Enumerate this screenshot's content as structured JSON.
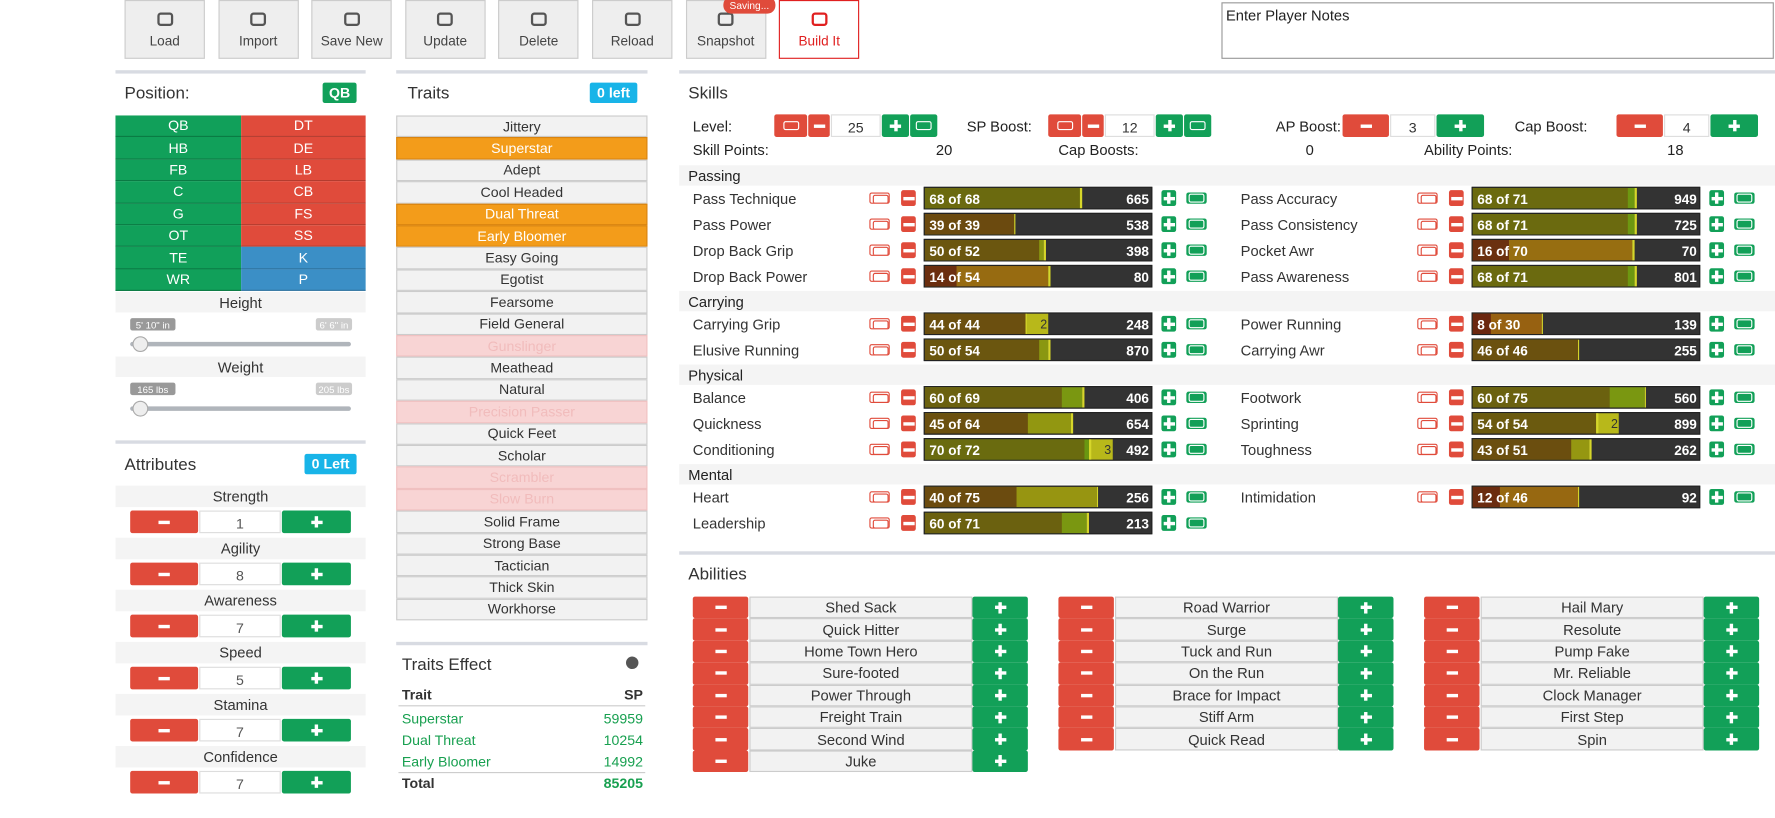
{
  "toolbar": {
    "buttons": [
      "Load",
      "Import",
      "Save New",
      "Update",
      "Delete",
      "Reload",
      "Snapshot",
      "Build It"
    ],
    "saving_badge": "Saving..."
  },
  "notes_placeholder": "Enter Player Notes",
  "position": {
    "title": "Position:",
    "badge": "QB",
    "groups": [
      {
        "color": "#11a05a",
        "labels": [
          "QB",
          "HB",
          "FB",
          "C",
          "G",
          "OT",
          "TE",
          "WR"
        ]
      },
      {
        "color": "#e04b3b",
        "labels": [
          "DT",
          "DE",
          "LB",
          "CB",
          "FS",
          "SS"
        ]
      },
      {
        "color": "#3b8fc6",
        "labels": [
          "K",
          "P"
        ]
      }
    ],
    "height": {
      "label": "Height",
      "min": "5' 10\" in",
      "max": "6' 6\" in"
    },
    "weight": {
      "label": "Weight",
      "min": "165 lbs",
      "max": "205 lbs"
    }
  },
  "attributes": {
    "title": "Attributes",
    "badge": "0 Left",
    "items": [
      {
        "name": "Strength",
        "value": 1
      },
      {
        "name": "Agility",
        "value": 8
      },
      {
        "name": "Awareness",
        "value": 7
      },
      {
        "name": "Speed",
        "value": 5
      },
      {
        "name": "Stamina",
        "value": 7
      },
      {
        "name": "Confidence",
        "value": 7
      }
    ]
  },
  "traits": {
    "title": "Traits",
    "badge": "0 left",
    "items": [
      {
        "name": "Jittery",
        "state": "normal"
      },
      {
        "name": "Superstar",
        "state": "selected"
      },
      {
        "name": "Adept",
        "state": "normal"
      },
      {
        "name": "Cool Headed",
        "state": "normal"
      },
      {
        "name": "Dual Threat",
        "state": "selected"
      },
      {
        "name": "Early Bloomer",
        "state": "selected"
      },
      {
        "name": "Easy Going",
        "state": "normal"
      },
      {
        "name": "Egotist",
        "state": "normal"
      },
      {
        "name": "Fearsome",
        "state": "normal"
      },
      {
        "name": "Field General",
        "state": "normal"
      },
      {
        "name": "Gunslinger",
        "state": "disabled"
      },
      {
        "name": "Meathead",
        "state": "normal"
      },
      {
        "name": "Natural",
        "state": "normal"
      },
      {
        "name": "Precision Passer",
        "state": "disabled"
      },
      {
        "name": "Quick Feet",
        "state": "normal"
      },
      {
        "name": "Scholar",
        "state": "normal"
      },
      {
        "name": "Scrambler",
        "state": "disabled"
      },
      {
        "name": "Slow Burn",
        "state": "disabled"
      },
      {
        "name": "Solid Frame",
        "state": "normal"
      },
      {
        "name": "Strong Base",
        "state": "normal"
      },
      {
        "name": "Tactician",
        "state": "normal"
      },
      {
        "name": "Thick Skin",
        "state": "normal"
      },
      {
        "name": "Workhorse",
        "state": "normal"
      }
    ]
  },
  "traits_effect": {
    "title": "Traits Effect",
    "header": [
      "Trait",
      "SP"
    ],
    "rows": [
      [
        "Superstar",
        59959
      ],
      [
        "Dual Threat",
        10254
      ],
      [
        "Early Bloomer",
        14992
      ]
    ],
    "total": [
      "Total",
      85205
    ]
  },
  "skills": {
    "title": "Skills",
    "boosts": [
      {
        "label": "Level:",
        "value": 25
      },
      {
        "label": "SP Boost:",
        "value": 12
      },
      {
        "label": "AP Boost:",
        "value": 3
      },
      {
        "label": "Cap Boost:",
        "value": 4
      }
    ],
    "points": [
      {
        "label": "Skill Points:",
        "value": 20
      },
      {
        "label": "Cap Boosts:",
        "value": 0
      },
      {
        "label": "Ability Points:",
        "value": 18
      }
    ],
    "groups": [
      {
        "name": "Passing",
        "left": [
          {
            "name": "Pass Technique",
            "value": 68,
            "cap": 68,
            "label": "68 of 68",
            "cost": 665
          },
          {
            "name": "Pass Power",
            "value": 39,
            "cap": 39,
            "label": "39 of 39",
            "cost": 538
          },
          {
            "name": "Drop Back Grip",
            "value": 50,
            "cap": 52,
            "label": "50 of 52",
            "cost": 398
          },
          {
            "name": "Drop Back Power",
            "value": 14,
            "cap": 54,
            "label": "14 of 54",
            "cost": 80
          }
        ],
        "right": [
          {
            "name": "Pass Accuracy",
            "value": 68,
            "cap": 71,
            "label": "68 of 71",
            "cost": 949
          },
          {
            "name": "Pass Consistency",
            "value": 68,
            "cap": 71,
            "label": "68 of 71",
            "cost": 725
          },
          {
            "name": "Pocket Awr",
            "value": 16,
            "cap": 70,
            "label": "16 of 70",
            "cost": 70
          },
          {
            "name": "Pass Awareness",
            "value": 68,
            "cap": 71,
            "label": "68 of 71",
            "cost": 801
          }
        ]
      },
      {
        "name": "Carrying",
        "left": [
          {
            "name": "Carrying Grip",
            "value": 44,
            "cap": 44,
            "label": "44 of 44",
            "boost": 2,
            "cost": 248
          },
          {
            "name": "Elusive Running",
            "value": 50,
            "cap": 54,
            "label": "50 of 54",
            "cost": 870
          }
        ],
        "right": [
          {
            "name": "Power Running",
            "value": 8,
            "cap": 30,
            "label": "8 of 30",
            "cost": 139
          },
          {
            "name": "Carrying Awr",
            "value": 46,
            "cap": 46,
            "label": "46 of 46",
            "cost": 255
          }
        ]
      },
      {
        "name": "Physical",
        "left": [
          {
            "name": "Balance",
            "value": 60,
            "cap": 69,
            "label": "60 of 69",
            "cost": 406
          },
          {
            "name": "Quickness",
            "value": 45,
            "cap": 64,
            "label": "45 of 64",
            "cost": 654
          },
          {
            "name": "Conditioning",
            "value": 70,
            "cap": 72,
            "label": "70 of 72",
            "boost": 3,
            "cost": 492
          }
        ],
        "right": [
          {
            "name": "Footwork",
            "value": 60,
            "cap": 75,
            "label": "60 of 75",
            "cost": 560
          },
          {
            "name": "Sprinting",
            "value": 54,
            "cap": 54,
            "label": "54 of 54",
            "boost": 2,
            "cost": 899
          },
          {
            "name": "Toughness",
            "value": 43,
            "cap": 51,
            "label": "43 of 51",
            "cost": 262
          }
        ]
      },
      {
        "name": "Mental",
        "left": [
          {
            "name": "Heart",
            "value": 40,
            "cap": 75,
            "label": "40 of 75",
            "cost": 256
          },
          {
            "name": "Leadership",
            "value": 60,
            "cap": 71,
            "label": "60 of 71",
            "cost": 213
          }
        ],
        "right": [
          {
            "name": "Intimidation",
            "value": 12,
            "cap": 46,
            "label": "12 of 46",
            "cost": 92
          }
        ]
      }
    ]
  },
  "abilities": {
    "title": "Abilities",
    "columns": [
      [
        "Shed Sack",
        "Quick Hitter",
        "Home Town Hero",
        "Sure-footed",
        "Power Through",
        "Freight Train",
        "Second Wind",
        "Juke"
      ],
      [
        "Road Warrior",
        "Surge",
        "Tuck and Run",
        "On the Run",
        "Brace for Impact",
        "Stiff Arm",
        "Quick Read"
      ],
      [
        "Hail Mary",
        "Resolute",
        "Pump Fake",
        "Mr. Reliable",
        "Clock Manager",
        "First Step",
        "Spin"
      ]
    ]
  }
}
